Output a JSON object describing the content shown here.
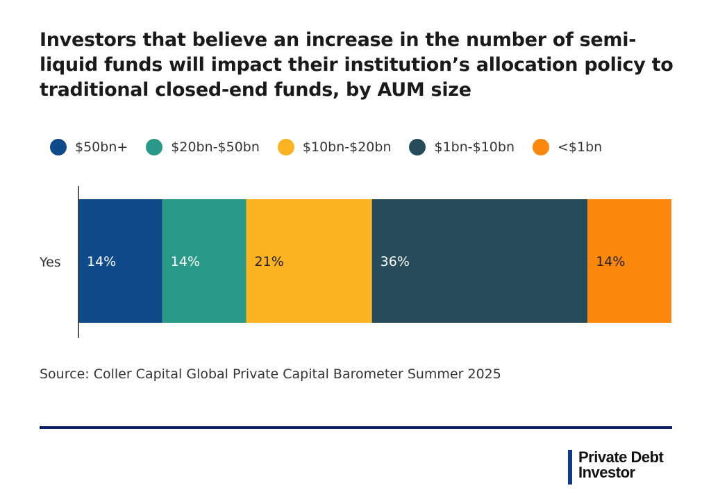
{
  "chart_data": {
    "type": "bar",
    "orientation": "horizontal-stacked-100",
    "title": "Investors that believe an increase in the number of semi-liquid funds will impact their institution’s allocation policy to traditional closed-end funds, by AUM size",
    "categories": [
      "Yes"
    ],
    "series": [
      {
        "name": "$50bn+",
        "values": [
          14
        ],
        "label": "14%",
        "color": "#0f4a8a",
        "label_color": "#ffffff"
      },
      {
        "name": "$20bn-$50bn",
        "values": [
          14
        ],
        "label": "14%",
        "color": "#2a9a88",
        "label_color": "#ffffff"
      },
      {
        "name": "$10bn-$20bn",
        "values": [
          21
        ],
        "label": "21%",
        "color": "#fbb321",
        "label_color": "#222222"
      },
      {
        "name": "$1bn-$10bn",
        "values": [
          36
        ],
        "label": "36%",
        "color": "#264b5a",
        "label_color": "#ffffff"
      },
      {
        "name": "<$1bn",
        "values": [
          14
        ],
        "label": "14%",
        "color": "#fb880c",
        "label_color": "#222222"
      }
    ],
    "legend_position": "top",
    "grid": false
  },
  "source": "Source: Coller Capital Global Private Capital Barometer Summer 2025",
  "logo": {
    "line1": "Private Debt",
    "line2": "Investor"
  }
}
